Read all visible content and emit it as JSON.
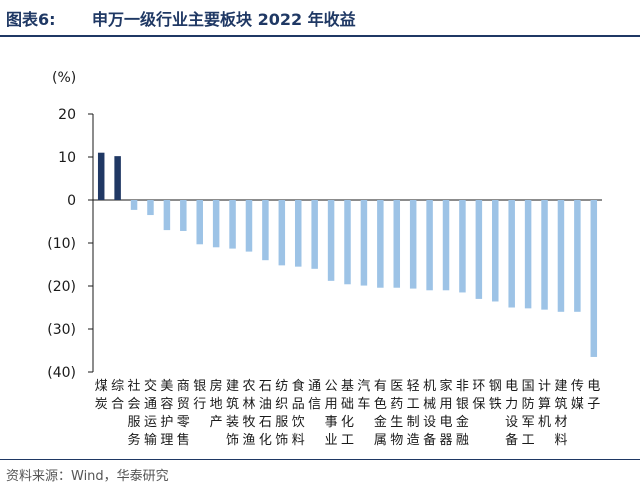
{
  "header": {
    "figure_label": "图表6:",
    "title": "申万一级行业主要板块 2022 年收益"
  },
  "source": "资料来源：Wind，华泰研究",
  "colors": {
    "positive_bar": "#203864",
    "negative_bar": "#9dc3e6",
    "title": "#1f3864"
  },
  "chart_data": {
    "type": "bar",
    "unit_label": "(%)",
    "ylim": [
      -40,
      20
    ],
    "yticks": [
      20,
      10,
      0,
      -10,
      -20,
      -30,
      -40
    ],
    "ytick_labels": [
      "20",
      "10",
      "0",
      "(10)",
      "(20)",
      "(30)",
      "(40)"
    ],
    "grid": false,
    "categories": [
      "煤炭",
      "综合",
      "社会服务",
      "交通运输",
      "美容护理",
      "商贸零售",
      "银行",
      "房地产",
      "建筑装饰",
      "农林牧渔",
      "石油石化",
      "纺织服饰",
      "食品饮料",
      "通信",
      "公用事业",
      "基础化工",
      "汽车",
      "有色金属",
      "医药生物",
      "轻工制造",
      "机械设备",
      "家用电器",
      "非银金融",
      "环保",
      "钢铁",
      "电力设备",
      "国防军工",
      "计算机",
      "建筑材料",
      "传媒",
      "电子"
    ],
    "values": [
      11.0,
      10.2,
      -2.3,
      -3.5,
      -7.0,
      -7.2,
      -10.3,
      -11.0,
      -11.3,
      -12.0,
      -14.0,
      -15.2,
      -15.5,
      -16.0,
      -18.8,
      -19.6,
      -19.9,
      -20.4,
      -20.4,
      -20.6,
      -21.0,
      -21.0,
      -21.5,
      -23.0,
      -23.6,
      -25.0,
      -25.2,
      -25.5,
      -26.0,
      -26.0,
      -36.5
    ]
  }
}
